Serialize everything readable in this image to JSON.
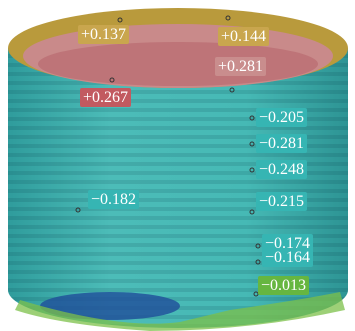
{
  "labels": [
    {
      "text": "+0.137",
      "color": "#c9a64e"
    },
    {
      "text": "+0.144",
      "color": "#c9a64e"
    },
    {
      "text": "+0.281",
      "color": "#c98d8d"
    },
    {
      "text": "+0.267",
      "color": "#c25a60"
    },
    {
      "text": "−0.205",
      "color": "#36b5b3"
    },
    {
      "text": "−0.281",
      "color": "#36b5b3"
    },
    {
      "text": "−0.248",
      "color": "#36b5b3"
    },
    {
      "text": "−0.182",
      "color": "#36b5b3"
    },
    {
      "text": "−0.215",
      "color": "#36b5b3"
    },
    {
      "text": "−0.174",
      "color": "#36b5b3"
    },
    {
      "text": "−0.164",
      "color": "#36b5b3"
    },
    {
      "text": "−0.013",
      "color": "#66b640"
    }
  ]
}
